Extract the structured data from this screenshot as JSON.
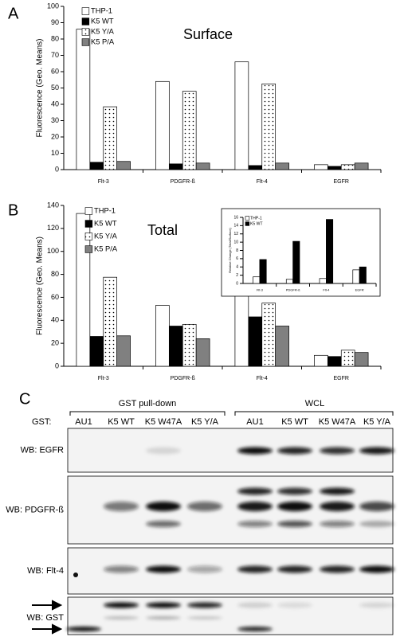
{
  "chart_data": [
    {
      "type": "bar",
      "panel": "A",
      "annotation": "Surface",
      "ylabel": "Fluorescence (Geo. Means)",
      "categories": [
        "Flt-3",
        "PDGFR-ß",
        "Flt-4",
        "EGFR"
      ],
      "ylim": [
        0,
        100
      ],
      "yticks": [
        0,
        10,
        20,
        30,
        40,
        50,
        60,
        70,
        80,
        90,
        100
      ],
      "series": [
        {
          "name": "THP-1",
          "color": "#ffffff",
          "values": [
            86,
            54,
            66,
            3
          ]
        },
        {
          "name": "K5 WT",
          "color": "#000000",
          "values": [
            4.5,
            3.5,
            2.5,
            2
          ]
        },
        {
          "name": "K5 Y/A",
          "color": "#ffffff",
          "pattern": "dots",
          "values": [
            38.5,
            48,
            52.5,
            3
          ]
        },
        {
          "name": "K5 P/A",
          "color": "#808080",
          "values": [
            5,
            4,
            4,
            4
          ]
        }
      ]
    },
    {
      "type": "bar",
      "panel": "B",
      "annotation": "Total",
      "ylabel": "Fluorescence (Geo. Means)",
      "categories": [
        "Flt-3",
        "PDGFR-ß",
        "Flt-4",
        "EGFR"
      ],
      "ylim": [
        0,
        140
      ],
      "yticks": [
        0,
        20,
        40,
        60,
        80,
        100,
        120,
        140
      ],
      "series": [
        {
          "name": "THP-1",
          "color": "#ffffff",
          "values": [
            133,
            53,
            81,
            9.5
          ]
        },
        {
          "name": "K5 WT",
          "color": "#000000",
          "values": [
            26,
            35,
            43,
            8.5
          ]
        },
        {
          "name": "K5 Y/A",
          "color": "#ffffff",
          "pattern": "dots",
          "values": [
            77.5,
            36.5,
            55,
            14
          ]
        },
        {
          "name": "K5 P/A",
          "color": "#808080",
          "values": [
            26.5,
            24,
            35,
            12
          ]
        }
      ]
    },
    {
      "type": "bar",
      "ylabel": "Relative Change (Total/Surface)",
      "categories": [
        "Flt-3",
        "PDGFR-ß",
        "Flt-4",
        "EGFR"
      ],
      "ylim": [
        0,
        16
      ],
      "yticks": [
        0,
        2,
        4,
        6,
        8,
        10,
        12,
        14,
        16
      ],
      "series": [
        {
          "name": "THP-1",
          "color": "#ffffff",
          "values": [
            1.6,
            1.0,
            1.2,
            3.3
          ]
        },
        {
          "name": "K5 WT",
          "color": "#000000",
          "values": [
            5.8,
            10.2,
            15.5,
            4.0
          ]
        }
      ]
    }
  ],
  "blot": {
    "panel": "C",
    "groups": [
      "GST pull-down",
      "WCL"
    ],
    "lane_header": "GST:",
    "lanes": [
      "AU1",
      "K5 WT",
      "K5 W47A",
      "K5 Y/A",
      "AU1",
      "K5 WT",
      "K5 W47A",
      "K5 Y/A"
    ],
    "rows": [
      "WB: EGFR",
      "WB: PDGFR-ß",
      "WB: Flt-4",
      "WB: GST"
    ]
  }
}
